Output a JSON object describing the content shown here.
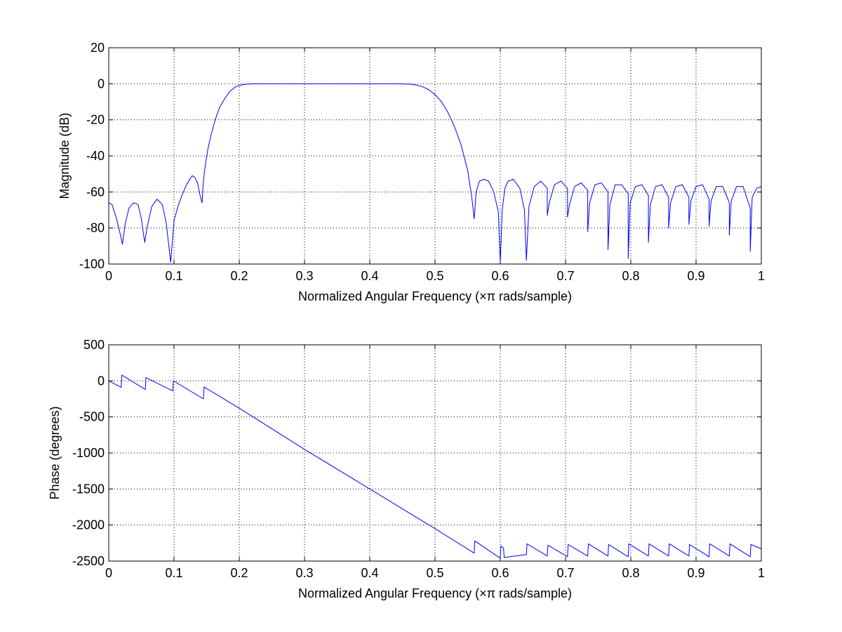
{
  "chart_data": [
    {
      "type": "line",
      "title": "",
      "xlabel": "Normalized Angular Frequency  (×π rads/sample)",
      "ylabel": "Magnitude (dB)",
      "xlim": [
        0,
        1
      ],
      "ylim": [
        -100,
        20
      ],
      "xticks": [
        0,
        0.1,
        0.2,
        0.3,
        0.4,
        0.5,
        0.6,
        0.7,
        0.8,
        0.9,
        1
      ],
      "xtick_labels": [
        "0",
        "0.1",
        "0.2",
        "0.3",
        "0.4",
        "0.5",
        "0.6",
        "0.7",
        "0.8",
        "0.9",
        "1"
      ],
      "yticks": [
        20,
        0,
        -20,
        -40,
        -60,
        -80,
        -100
      ],
      "ytick_labels": [
        "20",
        "0",
        "-20",
        "-40",
        "-60",
        "-80",
        "-100"
      ],
      "grid": true,
      "series": [
        {
          "color": "#0000ff",
          "x": [
            0,
            0.005,
            0.012,
            0.018,
            0.021,
            0.025,
            0.031,
            0.038,
            0.045,
            0.05,
            0.055,
            0.059,
            0.066,
            0.074,
            0.082,
            0.088,
            0.094,
            0.095,
            0.098,
            0.1,
            0.106,
            0.112,
            0.118,
            0.124,
            0.128,
            0.132,
            0.136,
            0.14,
            0.143,
            0.145,
            0.148,
            0.152,
            0.157,
            0.163,
            0.17,
            0.178,
            0.186,
            0.195,
            0.205,
            0.215,
            0.225,
            0.235,
            0.245,
            0.26,
            0.3,
            0.35,
            0.4,
            0.44,
            0.46,
            0.47,
            0.48,
            0.49,
            0.5,
            0.51,
            0.52,
            0.53,
            0.54,
            0.55,
            0.556,
            0.56,
            0.563,
            0.568,
            0.575,
            0.582,
            0.59,
            0.597,
            0.6,
            0.603,
            0.607,
            0.612,
            0.62,
            0.63,
            0.637,
            0.64,
            0.644,
            0.652,
            0.662,
            0.672,
            0.672,
            0.675,
            0.683,
            0.693,
            0.703,
            0.703,
            0.706,
            0.714,
            0.724,
            0.734,
            0.734,
            0.737,
            0.745,
            0.755,
            0.765,
            0.765,
            0.768,
            0.776,
            0.786,
            0.796,
            0.796,
            0.799,
            0.807,
            0.817,
            0.827,
            0.827,
            0.83,
            0.838,
            0.848,
            0.858,
            0.858,
            0.861,
            0.869,
            0.879,
            0.889,
            0.889,
            0.892,
            0.9,
            0.91,
            0.92,
            0.92,
            0.923,
            0.931,
            0.941,
            0.951,
            0.951,
            0.954,
            0.962,
            0.972,
            0.983,
            0.983,
            0.986,
            0.993,
            1
          ],
          "y": [
            -66,
            -67,
            -75,
            -84,
            -89,
            -78,
            -69,
            -66,
            -67,
            -75,
            -88,
            -79,
            -68,
            -64,
            -67,
            -77,
            -96,
            -99,
            -85,
            -76,
            -68,
            -62,
            -57,
            -53,
            -51,
            -52,
            -55,
            -62,
            -66,
            -54,
            -45,
            -36,
            -28,
            -20,
            -13,
            -8,
            -4,
            -1.5,
            -0.5,
            -0.1,
            0,
            0,
            0,
            0,
            0,
            0,
            0,
            0,
            -0.2,
            -0.6,
            -1.5,
            -3.2,
            -6,
            -10,
            -16,
            -24,
            -34,
            -48,
            -62,
            -75,
            -60,
            -54,
            -53,
            -54,
            -60,
            -71,
            -99,
            -70,
            -58,
            -54,
            -53,
            -58,
            -70,
            -98,
            -68,
            -57,
            -54,
            -58,
            -73,
            -66,
            -56,
            -54,
            -58,
            -74,
            -67,
            -57,
            -55,
            -59,
            -82,
            -66,
            -56,
            -55,
            -60,
            -92,
            -67,
            -56,
            -56,
            -61,
            -97,
            -66,
            -57,
            -56,
            -62,
            -88,
            -67,
            -57,
            -56,
            -63,
            -80,
            -66,
            -57,
            -56,
            -63,
            -78,
            -65,
            -57,
            -56,
            -64,
            -79,
            -65,
            -57,
            -57,
            -66,
            -84,
            -65,
            -57,
            -57,
            -69,
            -93,
            -63,
            -58,
            -57
          ]
        }
      ]
    },
    {
      "type": "line",
      "title": "",
      "xlabel": "Normalized Angular Frequency  (×π rads/sample)",
      "ylabel": "Phase (degrees)",
      "xlim": [
        0,
        1
      ],
      "ylim": [
        -2500,
        500
      ],
      "xticks": [
        0,
        0.1,
        0.2,
        0.3,
        0.4,
        0.5,
        0.6,
        0.7,
        0.8,
        0.9,
        1
      ],
      "xtick_labels": [
        "0",
        "0.1",
        "0.2",
        "0.3",
        "0.4",
        "0.5",
        "0.6",
        "0.7",
        "0.8",
        "0.9",
        "1"
      ],
      "yticks": [
        500,
        0,
        -500,
        -1000,
        -1500,
        -2000,
        -2500
      ],
      "ytick_labels": [
        "500",
        "0",
        "-500",
        "-1000",
        "-1500",
        "-2000",
        "-2500"
      ],
      "grid": true,
      "series": [
        {
          "color": "#0000ff",
          "x": [
            0,
            0.019,
            0.02,
            0.056,
            0.057,
            0.098,
            0.099,
            0.145,
            0.146,
            0.2,
            0.3,
            0.4,
            0.5,
            0.56,
            0.561,
            0.6,
            0.601,
            0.605,
            0.606,
            0.64,
            0.641,
            0.672,
            0.673,
            0.703,
            0.704,
            0.734,
            0.735,
            0.765,
            0.766,
            0.796,
            0.797,
            0.827,
            0.828,
            0.858,
            0.859,
            0.889,
            0.89,
            0.92,
            0.921,
            0.951,
            0.952,
            0.983,
            0.984,
            1
          ],
          "y": [
            0,
            -90,
            80,
            -120,
            45,
            -140,
            0,
            -250,
            -85,
            -380,
            -950,
            -1500,
            -2050,
            -2390,
            -2220,
            -2460,
            -2290,
            -2320,
            -2450,
            -2410,
            -2260,
            -2430,
            -2280,
            -2440,
            -2270,
            -2430,
            -2260,
            -2430,
            -2270,
            -2440,
            -2260,
            -2430,
            -2260,
            -2430,
            -2260,
            -2430,
            -2270,
            -2440,
            -2260,
            -2430,
            -2260,
            -2440,
            -2270,
            -2330
          ]
        }
      ]
    }
  ]
}
